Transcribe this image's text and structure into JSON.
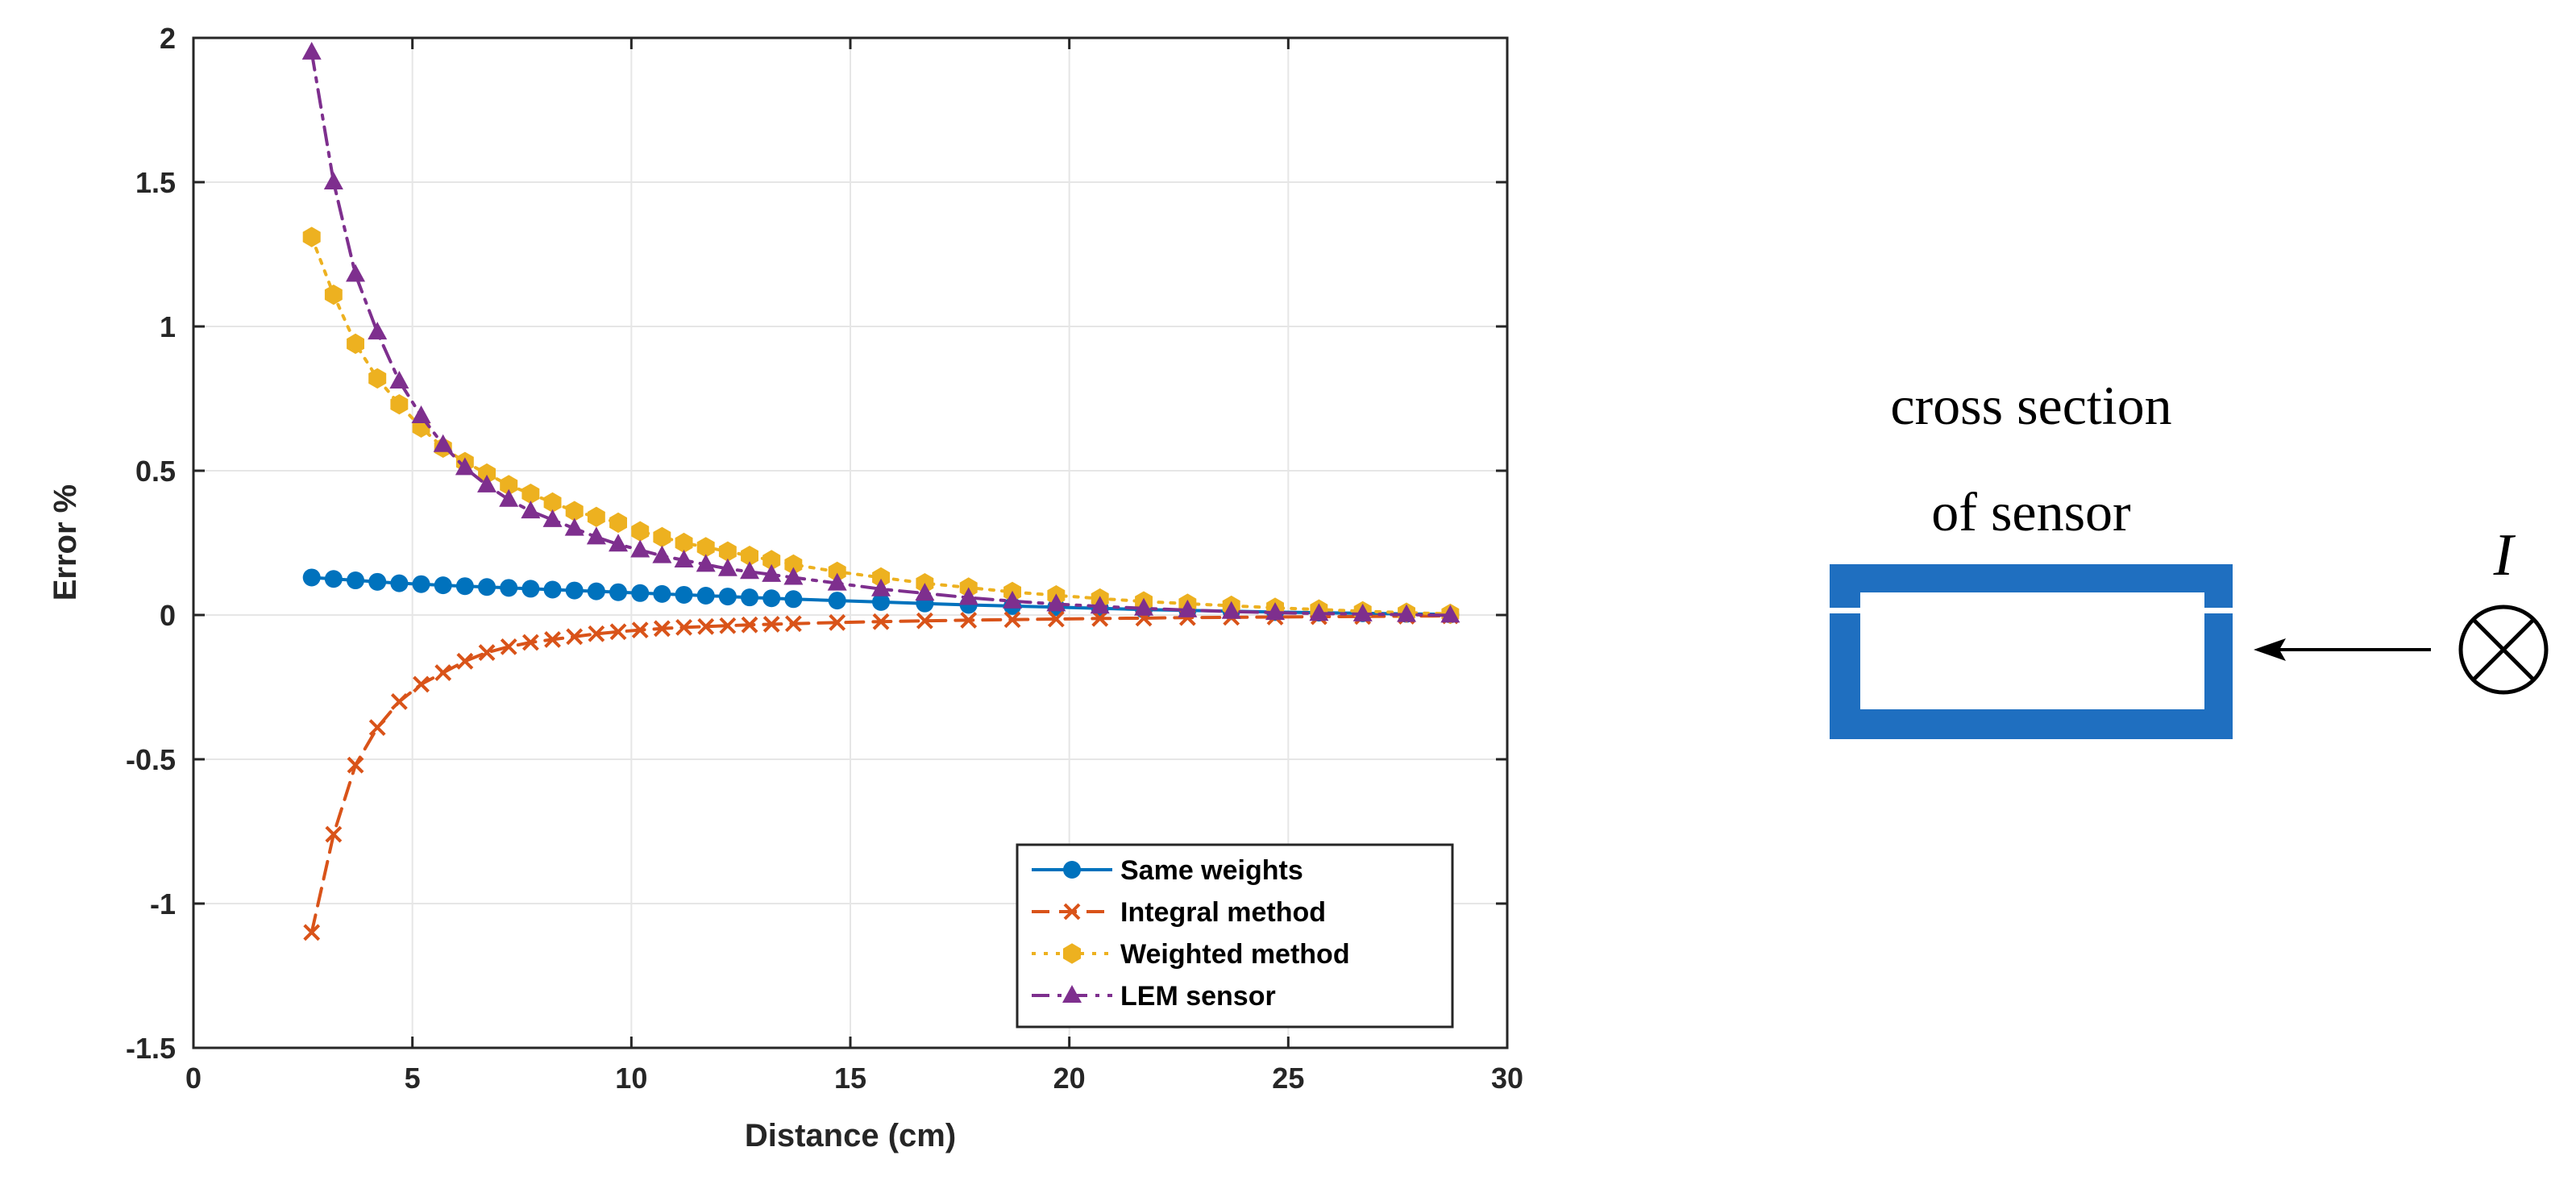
{
  "colors": {
    "same_weights": "#0072BD",
    "integral_method": "#D95319",
    "weighted_method": "#EDB120",
    "lem_sensor": "#7E2F8E",
    "sensor_body": "#1F6FC0",
    "axis": "#262626",
    "grid": "#e6e6e6"
  },
  "chart_data": {
    "type": "line",
    "title": "",
    "xlabel": "Distance (cm)",
    "ylabel": "Error %",
    "xlim": [
      0,
      30
    ],
    "ylim": [
      -1.5,
      2
    ],
    "grid": true,
    "legend_position": "bottom-right",
    "xticks": [
      0,
      5,
      10,
      15,
      20,
      25,
      30
    ],
    "xtick_labels": [
      "0",
      "5",
      "10",
      "15",
      "20",
      "25",
      "30"
    ],
    "yticks": [
      -1.5,
      -1,
      -0.5,
      0,
      0.5,
      1,
      1.5,
      2
    ],
    "ytick_labels": [
      "-1.5",
      "-1",
      "-0.5",
      "0",
      "0.5",
      "1",
      "1.5",
      "2"
    ],
    "series": [
      {
        "name": "Same weights",
        "color": "#0072BD",
        "line_style": "solid",
        "marker": "circle",
        "x": [
          2.7,
          3.2,
          3.7,
          4.2,
          4.7,
          5.2,
          5.7,
          6.2,
          6.7,
          7.2,
          7.7,
          8.2,
          8.7,
          9.2,
          9.7,
          10.2,
          10.7,
          11.2,
          11.7,
          12.2,
          12.7,
          13.2,
          13.7,
          14.7,
          15.7,
          16.7,
          17.7,
          18.7,
          19.7,
          20.7,
          21.7,
          22.7,
          23.7,
          24.7,
          25.7,
          26.7,
          27.7,
          28.7
        ],
        "y": [
          0.13,
          0.125,
          0.12,
          0.115,
          0.11,
          0.107,
          0.103,
          0.1,
          0.097,
          0.094,
          0.091,
          0.088,
          0.085,
          0.082,
          0.079,
          0.076,
          0.073,
          0.07,
          0.067,
          0.064,
          0.061,
          0.058,
          0.055,
          0.05,
          0.045,
          0.04,
          0.035,
          0.031,
          0.027,
          0.023,
          0.019,
          0.016,
          0.013,
          0.01,
          0.008,
          0.006,
          0.004,
          0.002
        ]
      },
      {
        "name": "Integral method",
        "color": "#D95319",
        "line_style": "dashed",
        "marker": "x",
        "x": [
          2.7,
          3.2,
          3.7,
          4.2,
          4.7,
          5.2,
          5.7,
          6.2,
          6.7,
          7.2,
          7.7,
          8.2,
          8.7,
          9.2,
          9.7,
          10.2,
          10.7,
          11.2,
          11.7,
          12.2,
          12.7,
          13.2,
          13.7,
          14.7,
          15.7,
          16.7,
          17.7,
          18.7,
          19.7,
          20.7,
          21.7,
          22.7,
          23.7,
          24.7,
          25.7,
          26.7,
          27.7,
          28.7
        ],
        "y": [
          -1.1,
          -0.76,
          -0.52,
          -0.39,
          -0.3,
          -0.24,
          -0.2,
          -0.16,
          -0.13,
          -0.11,
          -0.095,
          -0.085,
          -0.075,
          -0.065,
          -0.058,
          -0.052,
          -0.047,
          -0.043,
          -0.04,
          -0.037,
          -0.034,
          -0.032,
          -0.03,
          -0.026,
          -0.023,
          -0.02,
          -0.018,
          -0.016,
          -0.014,
          -0.012,
          -0.011,
          -0.009,
          -0.008,
          -0.007,
          -0.006,
          -0.005,
          -0.004,
          -0.003
        ]
      },
      {
        "name": "Weighted method",
        "color": "#EDB120",
        "line_style": "dotted",
        "marker": "hexagon",
        "x": [
          2.7,
          3.2,
          3.7,
          4.2,
          4.7,
          5.2,
          5.7,
          6.2,
          6.7,
          7.2,
          7.7,
          8.2,
          8.7,
          9.2,
          9.7,
          10.2,
          10.7,
          11.2,
          11.7,
          12.2,
          12.7,
          13.2,
          13.7,
          14.7,
          15.7,
          16.7,
          17.7,
          18.7,
          19.7,
          20.7,
          21.7,
          22.7,
          23.7,
          24.7,
          25.7,
          26.7,
          27.7,
          28.7
        ],
        "y": [
          1.31,
          1.11,
          0.94,
          0.82,
          0.73,
          0.65,
          0.58,
          0.53,
          0.49,
          0.45,
          0.42,
          0.39,
          0.36,
          0.34,
          0.32,
          0.29,
          0.27,
          0.25,
          0.235,
          0.22,
          0.205,
          0.19,
          0.175,
          0.15,
          0.13,
          0.11,
          0.095,
          0.08,
          0.068,
          0.057,
          0.047,
          0.039,
          0.032,
          0.025,
          0.019,
          0.013,
          0.008,
          0.004
        ]
      },
      {
        "name": "LEM sensor",
        "color": "#7E2F8E",
        "line_style": "dash-dot",
        "marker": "triangle",
        "x": [
          2.7,
          3.2,
          3.7,
          4.2,
          4.7,
          5.2,
          5.7,
          6.2,
          6.7,
          7.2,
          7.7,
          8.2,
          8.7,
          9.2,
          9.7,
          10.2,
          10.7,
          11.2,
          11.7,
          12.2,
          12.7,
          13.2,
          13.7,
          14.7,
          15.7,
          16.7,
          17.7,
          18.7,
          19.7,
          20.7,
          21.7,
          22.7,
          23.7,
          24.7,
          25.7,
          26.7,
          27.7,
          28.7
        ],
        "y": [
          1.95,
          1.5,
          1.18,
          0.98,
          0.81,
          0.69,
          0.59,
          0.51,
          0.45,
          0.4,
          0.36,
          0.33,
          0.3,
          0.27,
          0.245,
          0.225,
          0.205,
          0.19,
          0.175,
          0.16,
          0.15,
          0.14,
          0.13,
          0.11,
          0.09,
          0.075,
          0.06,
          0.048,
          0.038,
          0.03,
          0.023,
          0.017,
          0.012,
          0.008,
          0.005,
          0.003,
          0.001,
          -0.001
        ]
      }
    ]
  },
  "diagram": {
    "caption_line1": "cross section",
    "caption_line2": "of sensor",
    "current_symbol": "I"
  }
}
